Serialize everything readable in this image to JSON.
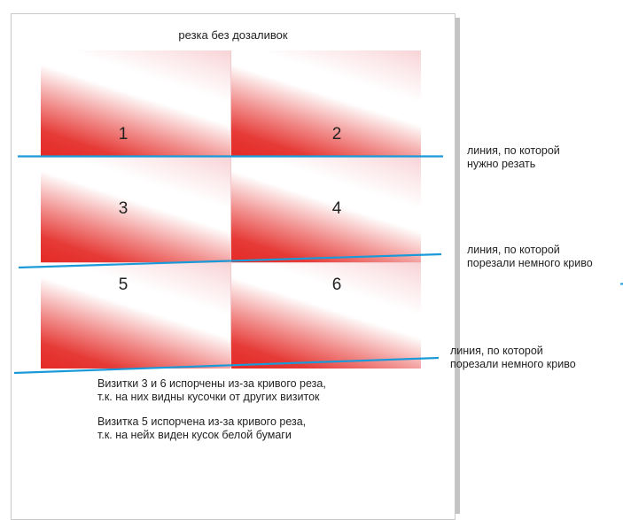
{
  "title": "резка без дозаливок",
  "cards": [
    "1",
    "2",
    "3",
    "4",
    "5",
    "6"
  ],
  "line_color": "#1a9ad8",
  "card_color": "#e42a26",
  "labels": [
    {
      "line1": "линия, по которой",
      "line2": "нужно резать"
    },
    {
      "line1": "линия, по которой",
      "line2": "порезали немного криво"
    },
    {
      "line1": "линия, по которой",
      "line2": "порезали немного криво"
    }
  ],
  "notes": [
    {
      "line1": "Визитки 3 и 6 испорчены из-за кривого реза,",
      "line2": "т.к. на них видны кусочки от других визиток"
    },
    {
      "line1": "Визитка 5 испорчена из-за кривого реза,",
      "line2": "т.к. на нейх виден кусок белой бумаги"
    }
  ]
}
